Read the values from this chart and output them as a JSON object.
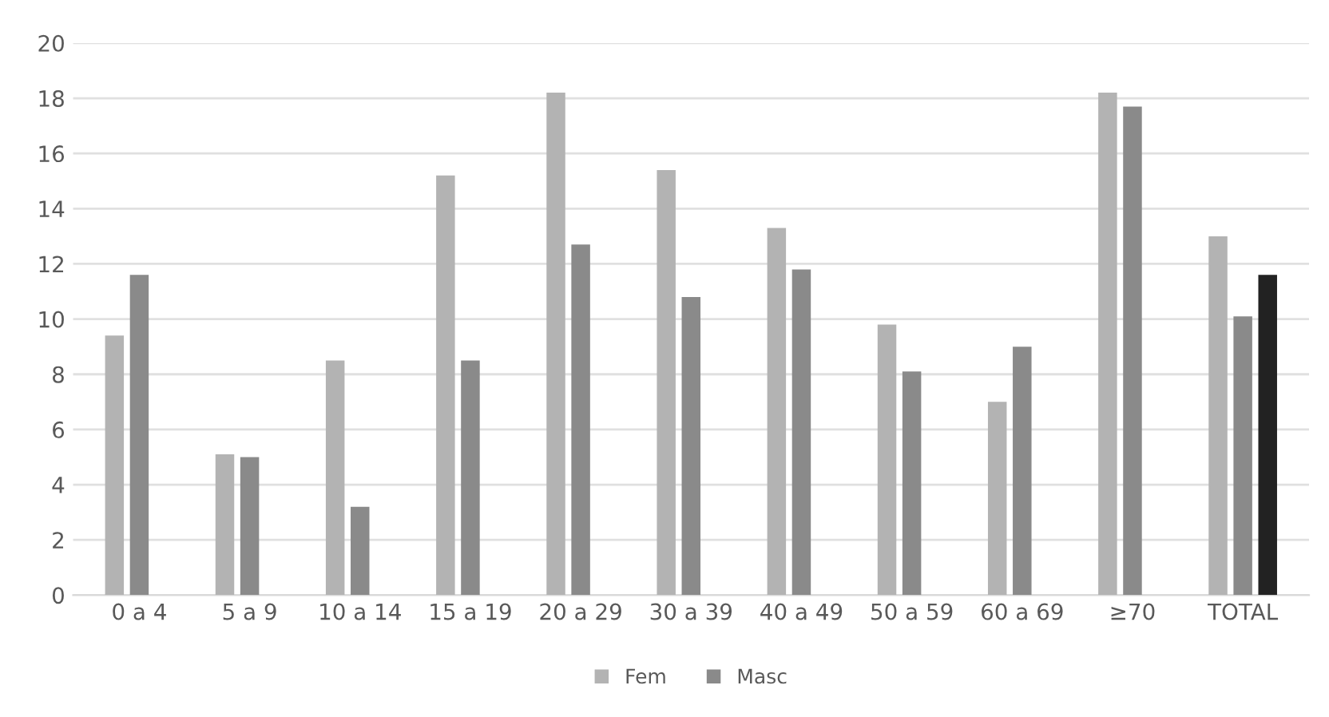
{
  "chart_data": {
    "type": "bar",
    "categories": [
      "0 a 4",
      "5 a 9",
      "10 a 14",
      "15 a 19",
      "20 a 29",
      "30 a 39",
      "40 a 49",
      "50 a 59",
      "60 a 69",
      "≥70",
      "TOTAL"
    ],
    "series": [
      {
        "name": "Fem",
        "color": "#b3b3b3",
        "values": [
          9.4,
          5.1,
          8.5,
          15.2,
          18.2,
          15.4,
          13.3,
          9.8,
          7.0,
          18.2,
          13.0
        ]
      },
      {
        "name": "Masc",
        "color": "#8a8a8a",
        "values": [
          11.6,
          5.0,
          3.2,
          8.5,
          12.7,
          10.8,
          11.8,
          8.1,
          9.0,
          17.7,
          10.1
        ]
      },
      {
        "color": "#222222",
        "values": [
          null,
          null,
          null,
          null,
          null,
          null,
          null,
          null,
          null,
          null,
          11.6
        ]
      }
    ],
    "ylim": [
      0,
      20
    ],
    "yticks": [
      0,
      2,
      4,
      6,
      8,
      10,
      12,
      14,
      16,
      18,
      20
    ],
    "grid": "y",
    "legend": "bottom"
  }
}
